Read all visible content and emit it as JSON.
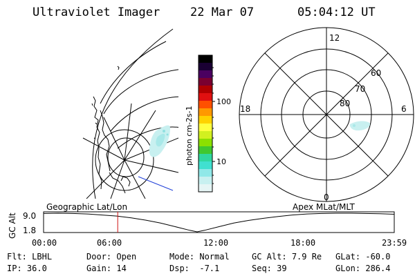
{
  "header": {
    "title": "Ultraviolet Imager",
    "date": "22 Mar 07",
    "time": "05:04:12 UT"
  },
  "colorbar": {
    "label": "photon cm-2s-1",
    "ticks": [
      "100",
      "10"
    ],
    "colors": [
      "#000000",
      "#1a0033",
      "#4a0060",
      "#7a0030",
      "#b00000",
      "#e01010",
      "#ff5000",
      "#ff9900",
      "#ffd200",
      "#ffff40",
      "#d2f020",
      "#8ce000",
      "#40c830",
      "#30d7a0",
      "#40e0d0",
      "#90e8e8",
      "#c8f0f0",
      "#e6f5f5"
    ]
  },
  "geo_map": {
    "name": "Geographic Lat/Lon",
    "track_color": "#1f3fd8"
  },
  "polar_plot": {
    "name": "Apex MLat/MLT",
    "mlt_labels": {
      "top": "12",
      "left": "18",
      "right": "6",
      "bottom": "0"
    },
    "mlat_labels": [
      "60",
      "70",
      "80"
    ]
  },
  "chart_data": {
    "type": "line",
    "title": "",
    "ylabel": "GC Alt",
    "yticks": [
      "9.0",
      "1.8"
    ],
    "ylim": [
      1.8,
      9.0
    ],
    "xlim_hours": [
      0,
      23.98
    ],
    "xticks": [
      "00:00",
      "06:00",
      "12:00",
      "18:00",
      "23:59"
    ],
    "current_time_hours": 5.07,
    "marker_color": "#d01010",
    "series": [
      {
        "x": [
          0,
          1,
          2,
          3,
          4,
          5,
          6,
          7,
          8,
          9,
          10,
          10.5,
          11,
          12,
          13,
          14,
          15,
          16,
          17,
          18,
          19,
          20,
          21,
          22,
          23,
          23.98
        ],
        "y": [
          8.9,
          9.0,
          8.9,
          8.7,
          8.3,
          7.9,
          7.2,
          6.3,
          5.2,
          3.8,
          2.4,
          1.8,
          2.4,
          3.8,
          5.2,
          6.2,
          7.0,
          7.7,
          8.3,
          8.7,
          8.9,
          9.0,
          9.0,
          8.9,
          8.8,
          8.6
        ]
      }
    ]
  },
  "info": {
    "flt_label": "Flt:",
    "flt_value": "LBHL",
    "ip_label": "IP:",
    "ip_value": "36.0",
    "door_label": "Door:",
    "door_value": "Open",
    "gain_label": "Gain:",
    "gain_value": "14",
    "mode_label": "Mode:",
    "mode_value": "Normal",
    "dsp_label": "Dsp:",
    "dsp_value": "-7.1",
    "gcalt_label": "GC Alt:",
    "gcalt_value": "7.9 Re",
    "seq_label": "Seq:",
    "seq_value": "39",
    "glat_label": "GLat:",
    "glat_value": "-60.0",
    "glon_label": "GLon:",
    "glon_value": "286.4"
  }
}
